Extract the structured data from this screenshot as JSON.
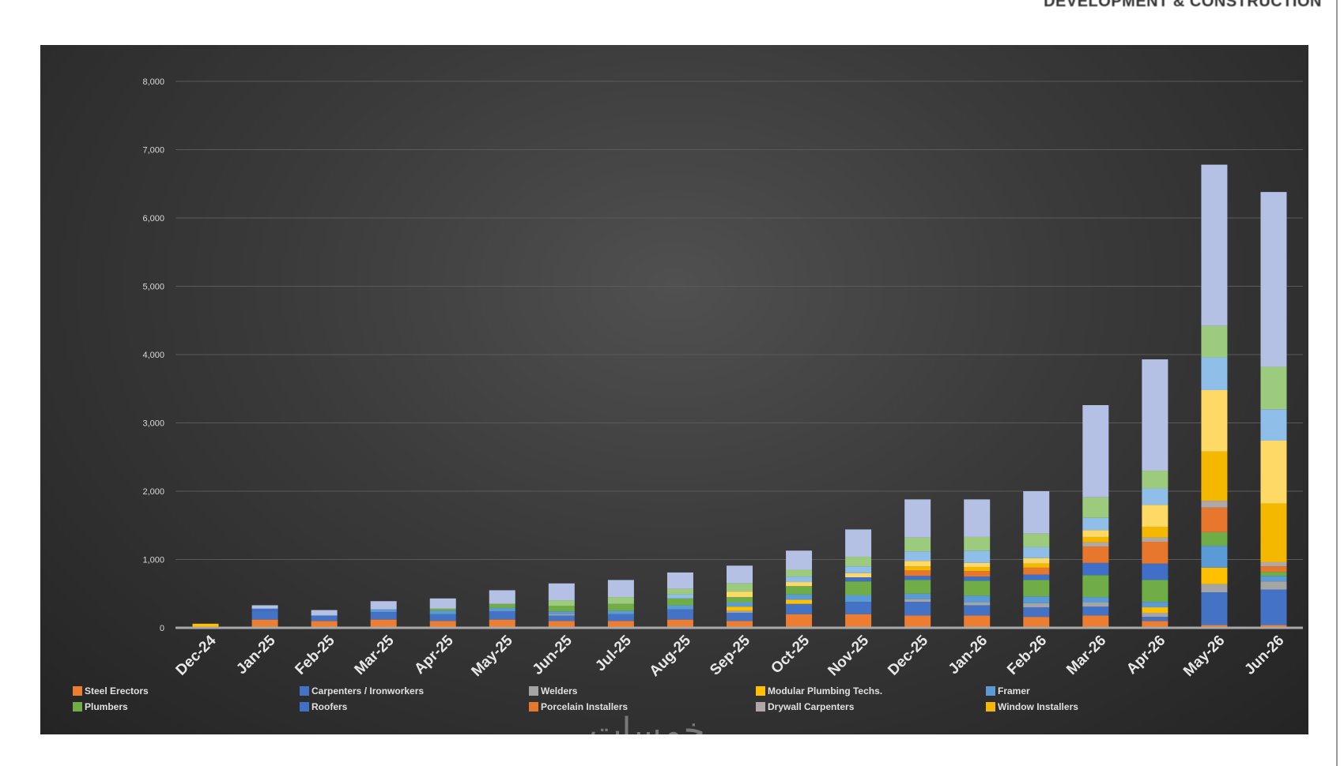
{
  "header": {
    "title": "DEVELOPMENT & CONSTRUCTION"
  },
  "watermark": "خمسات",
  "chart_data": {
    "type": "bar",
    "stacked": true,
    "title": "",
    "xlabel": "",
    "ylabel": "",
    "ylim": [
      0,
      8000
    ],
    "yticks": [
      0,
      1000,
      2000,
      3000,
      4000,
      5000,
      6000,
      7000,
      8000
    ],
    "ytick_labels": [
      "0",
      "1,000",
      "2,000",
      "3,000",
      "4,000",
      "5,000",
      "6,000",
      "7,000",
      "8,000"
    ],
    "grid": true,
    "legend_placement": "bottom",
    "background": "#333333",
    "categories": [
      "Dec-24",
      "Jan-25",
      "Feb-25",
      "Mar-25",
      "Apr-25",
      "May-25",
      "Jun-25",
      "Jul-25",
      "Aug-25",
      "Sep-25",
      "Oct-25",
      "Nov-25",
      "Dec-25",
      "Jan-26",
      "Feb-26",
      "Mar-26",
      "Apr-26",
      "May-26",
      "Jun-26"
    ],
    "series": [
      {
        "name": "Steel Erectors",
        "color": "#ED7D31",
        "values": [
          0,
          120,
          100,
          120,
          100,
          120,
          100,
          100,
          120,
          100,
          200,
          200,
          180,
          180,
          160,
          180,
          100,
          40,
          40
        ]
      },
      {
        "name": "Carpenters / Ironworkers",
        "color": "#4472C4",
        "values": [
          0,
          130,
          80,
          110,
          100,
          120,
          80,
          100,
          150,
          120,
          150,
          180,
          200,
          150,
          140,
          130,
          60,
          480,
          520
        ]
      },
      {
        "name": "Welders",
        "color": "#A5A5A5",
        "values": [
          0,
          0,
          0,
          0,
          0,
          0,
          20,
          0,
          0,
          30,
          0,
          0,
          40,
          40,
          60,
          60,
          60,
          120,
          120
        ]
      },
      {
        "name": "Modular Plumbing Techs.",
        "color": "#FFC000",
        "values": [
          60,
          0,
          0,
          0,
          0,
          0,
          0,
          0,
          0,
          60,
          60,
          0,
          0,
          0,
          0,
          0,
          80,
          240,
          0
        ]
      },
      {
        "name": "Framer",
        "color": "#5B9BD5",
        "values": [
          0,
          0,
          0,
          40,
          50,
          50,
          40,
          50,
          60,
          60,
          80,
          100,
          80,
          100,
          100,
          80,
          80,
          320,
          80
        ]
      },
      {
        "name": "Plumbers",
        "color": "#70AD47",
        "values": [
          0,
          0,
          0,
          0,
          30,
          60,
          80,
          100,
          100,
          80,
          120,
          200,
          200,
          220,
          240,
          320,
          320,
          200,
          60
        ]
      },
      {
        "name": "Roofers",
        "color": "#3F6FC6",
        "values": [
          0,
          30,
          0,
          0,
          0,
          0,
          0,
          0,
          0,
          0,
          0,
          60,
          60,
          60,
          80,
          180,
          240,
          0,
          0
        ]
      },
      {
        "name": "Porcelain Installers",
        "color": "#E8772E",
        "values": [
          0,
          0,
          0,
          0,
          0,
          0,
          0,
          0,
          0,
          0,
          0,
          0,
          80,
          80,
          100,
          240,
          320,
          360,
          80
        ]
      },
      {
        "name": "Drywall Carpenters",
        "color": "#B0A8A8",
        "values": [
          0,
          0,
          0,
          0,
          0,
          0,
          0,
          0,
          0,
          0,
          0,
          0,
          0,
          0,
          0,
          60,
          60,
          100,
          60
        ]
      },
      {
        "name": "Window Installers",
        "color": "#F5B800",
        "values": [
          0,
          0,
          0,
          0,
          0,
          0,
          0,
          0,
          0,
          0,
          0,
          0,
          60,
          60,
          60,
          80,
          160,
          720,
          860
        ]
      },
      {
        "color": "#FFD966",
        "values": [
          0,
          0,
          0,
          0,
          0,
          0,
          0,
          0,
          0,
          80,
          60,
          60,
          80,
          60,
          80,
          100,
          320,
          900,
          920
        ]
      },
      {
        "color": "#8FBEE8",
        "values": [
          0,
          0,
          0,
          0,
          0,
          0,
          0,
          0,
          60,
          0,
          80,
          100,
          140,
          180,
          160,
          180,
          240,
          480,
          460
        ]
      },
      {
        "color": "#9CCB7E",
        "values": [
          0,
          0,
          0,
          0,
          0,
          0,
          80,
          100,
          80,
          120,
          100,
          140,
          200,
          200,
          200,
          300,
          260,
          460,
          620
        ]
      },
      {
        "color": "#B4C0E4",
        "values": [
          0,
          50,
          80,
          120,
          150,
          200,
          250,
          250,
          240,
          260,
          280,
          400,
          560,
          550,
          620,
          1350,
          1630,
          2360,
          2560
        ]
      }
    ]
  }
}
